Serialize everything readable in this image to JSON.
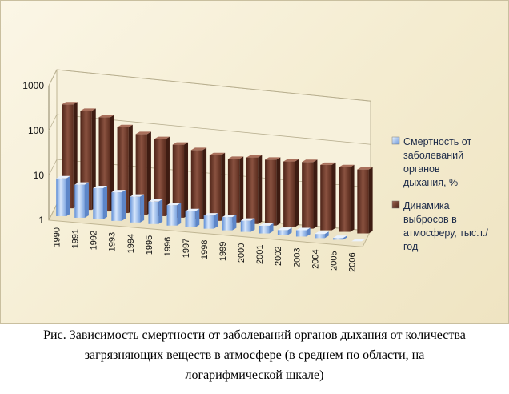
{
  "chart_data": {
    "type": "bar",
    "scale": "log",
    "ylim": [
      1,
      1000
    ],
    "yticks": [
      "1",
      "10",
      "100",
      "1000"
    ],
    "categories": [
      "1990",
      "1991",
      "1992",
      "1993",
      "1994",
      "1995",
      "1996",
      "1997",
      "1998",
      "1999",
      "2000",
      "2001",
      "2002",
      "2003",
      "2004",
      "2005",
      "2006"
    ],
    "series": [
      {
        "name": "Смертность от заболеваний органов дыхания, %",
        "name_lines": [
          "Смертность от",
          "заболеваний",
          "органов",
          "дыхания, %"
        ],
        "color": "#8fb4e8",
        "values": [
          7.0,
          5.5,
          5.0,
          4.4,
          3.8,
          3.2,
          2.9,
          2.3,
          2.0,
          2.0,
          1.8,
          1.5,
          1.3,
          1.4,
          1.25,
          1.1,
          1.0
        ]
      },
      {
        "name": "Динамика выбросов в атмосферу, тыс.т./год",
        "name_lines": [
          "Динамика",
          "выбросов в",
          "атмосферу, тыс.т./",
          "год"
        ],
        "color": "#7a3f2e",
        "values": [
          210,
          165,
          130,
          85,
          65,
          55,
          45,
          37,
          31,
          28,
          33,
          32,
          32,
          34,
          32,
          31,
          30
        ]
      }
    ],
    "grid": true,
    "legend": "right"
  },
  "caption": {
    "lines": [
      "Рис. Зависимость смертности от заболеваний органов дыхания от количества",
      "загрязняющих веществ в атмосфере (в среднем по области, на",
      "логарифмической шкале)"
    ]
  }
}
